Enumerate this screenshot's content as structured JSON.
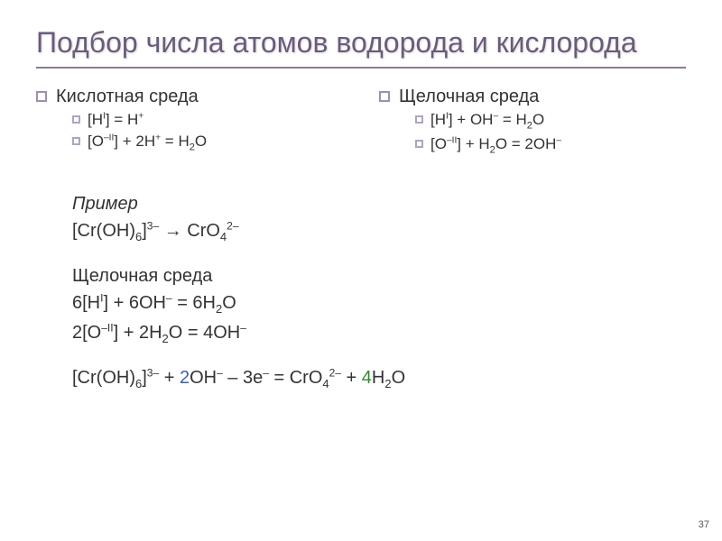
{
  "title": "Подбор числа атомов водорода и кислорода",
  "left": {
    "heading": "Кислотная среда",
    "line1_a": "[H",
    "line1_sup": "I",
    "line1_b": "] = H",
    "line1_c": "+",
    "line2_a": "[O",
    "line2_sup": "–II",
    "line2_b": "] + 2H",
    "line2_c": "+",
    "line2_d": " = H",
    "line2_sub": "2",
    "line2_e": "O"
  },
  "right": {
    "heading": "Щелочная среда",
    "line1_a": "[H",
    "line1_sup": "I",
    "line1_b": "] + OH",
    "line1_c": "–",
    "line1_d": " = H",
    "line1_sub": "2",
    "line1_e": "O",
    "line2_a": "[O",
    "line2_sup": "–II",
    "line2_b": "] + H",
    "line2_sub": "2",
    "line2_c": "O = 2OH",
    "line2_d": "–"
  },
  "ex": {
    "label": "Пример",
    "r1_a": "[Cr(OH)",
    "r1_sub1": "6",
    "r1_b": "]",
    "r1_sup1": "3–",
    "r1_c": " → CrO",
    "r1_sub2": "4",
    "r1_sup2": "2–",
    "r2": "Щелочная среда",
    "r3_a": "6[H",
    "r3_sup": "I",
    "r3_b": "] + 6OH",
    "r3_c": "–",
    "r3_d": " = 6H",
    "r3_sub": "2",
    "r3_e": "O",
    "r4_a": "2[O",
    "r4_sup": "–II",
    "r4_b": "] + 2H",
    "r4_sub": "2",
    "r4_c": "O = 4OH",
    "r4_d": "–",
    "r5_a": "[Cr(OH)",
    "r5_sub1": "6",
    "r5_b": "]",
    "r5_sup1": "3–",
    "r5_c": " + ",
    "r5_d": "2",
    "r5_e": "OH",
    "r5_f": "–",
    "r5_g": " – 3e",
    "r5_h": "–",
    "r5_i": " = CrO",
    "r5_sub2": "4",
    "r5_sup2": "2–",
    "r5_j": " + ",
    "r5_k": "4",
    "r5_l": "H",
    "r5_sub3": "2",
    "r5_m": "O"
  },
  "page": "37"
}
